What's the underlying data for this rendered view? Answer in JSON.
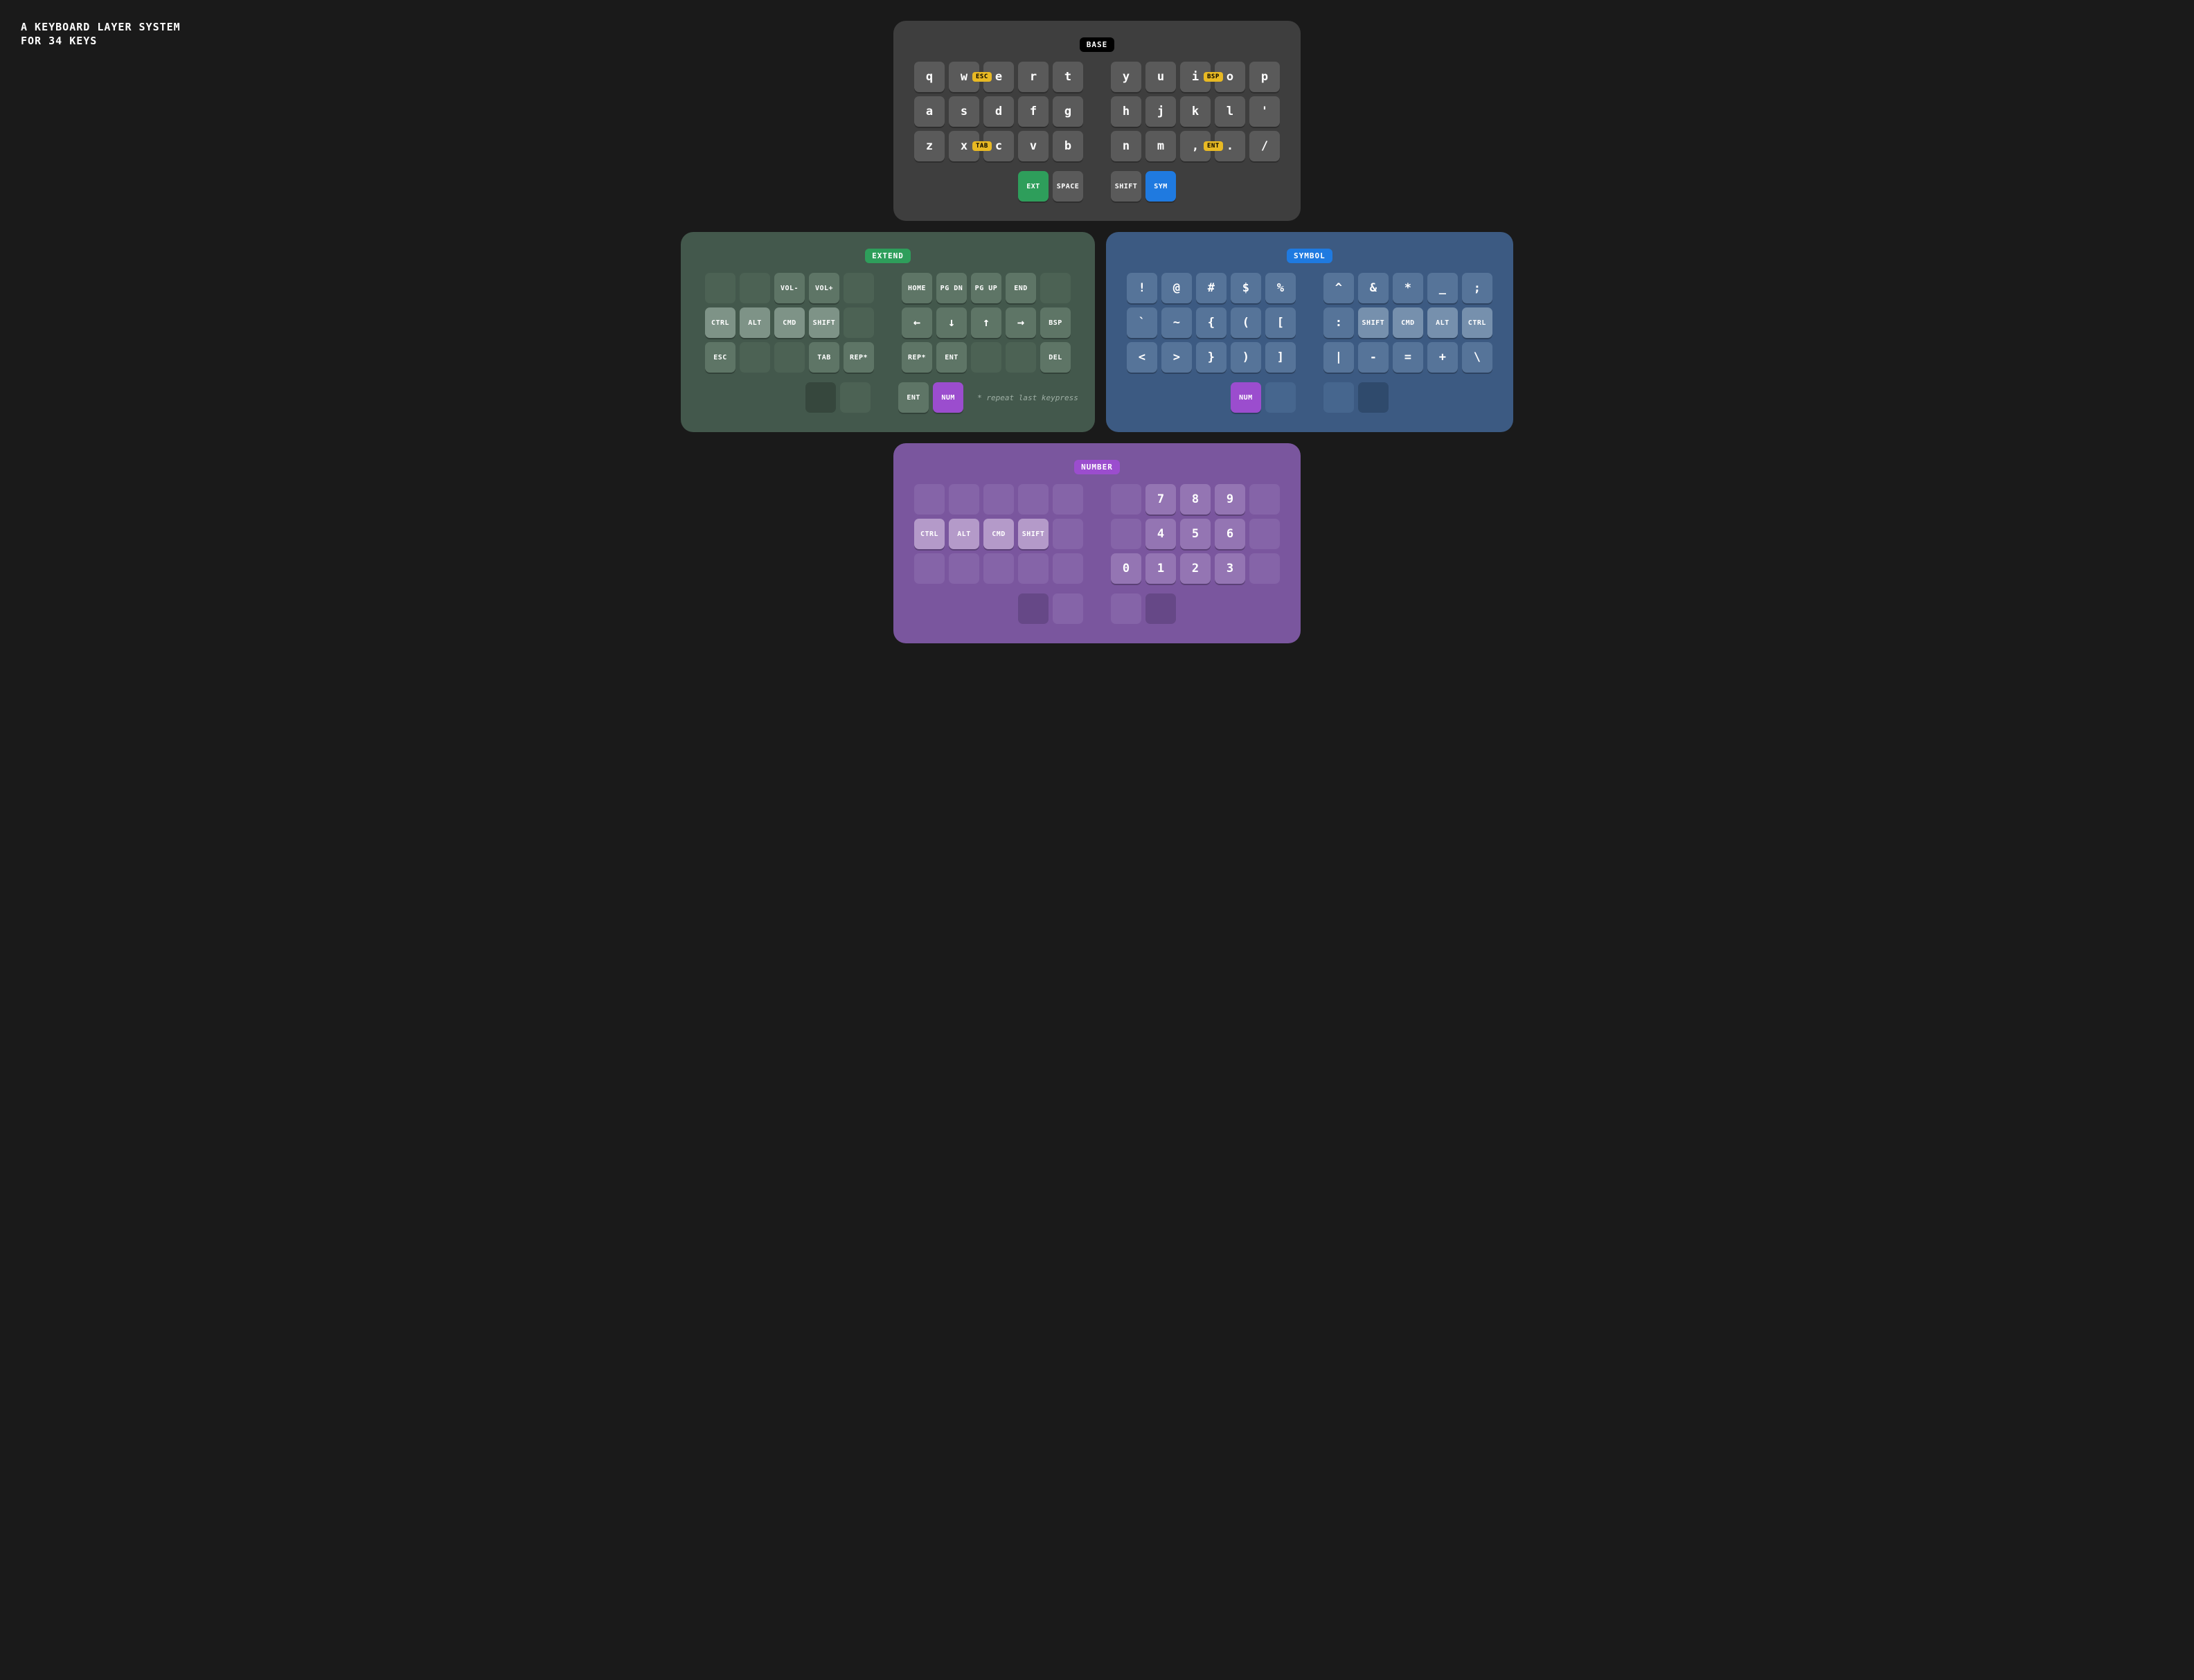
{
  "title_line1": "A KEYBOARD LAYER SYSTEM",
  "title_line2": "FOR 34 KEYS",
  "page_bg": "#1a1a1a",
  "layers": {
    "base": {
      "badge": "BASE",
      "badge_bg": "#000000",
      "badge_fg": "#ffffff",
      "board_bg": "#3e3e3e",
      "key_bg": "#5a5a5a",
      "key_fg": "#ffffff",
      "blank_bg": "#474747",
      "rows": [
        [
          {
            "l": "q"
          },
          {
            "l": "w",
            "combo": {
              "t": "ESC",
              "bg": "#e8b923",
              "fg": "#000"
            }
          },
          {
            "l": "e"
          },
          {
            "l": "r"
          },
          {
            "l": "t"
          },
          null,
          {
            "l": "y"
          },
          {
            "l": "u"
          },
          {
            "l": "i",
            "combo": {
              "t": "BSP",
              "bg": "#e8b923",
              "fg": "#000"
            }
          },
          {
            "l": "o"
          },
          {
            "l": "p"
          }
        ],
        [
          {
            "l": "a"
          },
          {
            "l": "s"
          },
          {
            "l": "d"
          },
          {
            "l": "f"
          },
          {
            "l": "g"
          },
          null,
          {
            "l": "h"
          },
          {
            "l": "j"
          },
          {
            "l": "k"
          },
          {
            "l": "l"
          },
          {
            "l": "'"
          }
        ],
        [
          {
            "l": "z"
          },
          {
            "l": "x",
            "combo": {
              "t": "TAB",
              "bg": "#e8b923",
              "fg": "#000"
            }
          },
          {
            "l": "c"
          },
          {
            "l": "v"
          },
          {
            "l": "b"
          },
          null,
          {
            "l": "n"
          },
          {
            "l": "m"
          },
          {
            "l": ",",
            "combo": {
              "t": "ENT",
              "bg": "#e8b923",
              "fg": "#000"
            }
          },
          {
            "l": "."
          },
          {
            "l": "/"
          }
        ]
      ],
      "thumbs": [
        {
          "l": "EXT",
          "sm": true,
          "bg": "#2e9e5b"
        },
        {
          "l": "SPACE",
          "sm": true
        },
        null,
        {
          "l": "SHIFT",
          "sm": true
        },
        {
          "l": "SYM",
          "sm": true,
          "bg": "#1f7ae0"
        }
      ]
    },
    "extend": {
      "badge": "EXTEND",
      "badge_bg": "#2e9e5b",
      "badge_fg": "#ffffff",
      "board_bg": "#43584c",
      "key_bg": "#5e7566",
      "key_fg": "#ffffff",
      "blank_bg": "#4c6254",
      "mod_bg": "#7e9387",
      "held_bg": "#36473d",
      "footnote": "* repeat last keypress",
      "footnote_color": "#c6d4cb",
      "rows": [
        [
          {
            "blank": true
          },
          {
            "blank": true
          },
          {
            "l": "VOL-",
            "sm": true
          },
          {
            "l": "VOL+",
            "sm": true
          },
          {
            "blank": true
          },
          null,
          {
            "l": "HOME",
            "sm": true
          },
          {
            "l": "PG DN",
            "sm": true
          },
          {
            "l": "PG UP",
            "sm": true
          },
          {
            "l": "END",
            "sm": true
          },
          {
            "blank": true
          }
        ],
        [
          {
            "l": "CTRL",
            "sm": true,
            "mod": true
          },
          {
            "l": "ALT",
            "sm": true,
            "mod": true
          },
          {
            "l": "CMD",
            "sm": true,
            "mod": true
          },
          {
            "l": "SHIFT",
            "sm": true,
            "mod": true
          },
          {
            "blank": true
          },
          null,
          {
            "l": "←"
          },
          {
            "l": "↓"
          },
          {
            "l": "↑"
          },
          {
            "l": "→"
          },
          {
            "l": "BSP",
            "sm": true
          }
        ],
        [
          {
            "l": "ESC",
            "sm": true
          },
          {
            "blank": true
          },
          {
            "blank": true
          },
          {
            "l": "TAB",
            "sm": true
          },
          {
            "l": "REP*",
            "sm": true
          },
          null,
          {
            "l": "REP*",
            "sm": true
          },
          {
            "l": "ENT",
            "sm": true
          },
          {
            "blank": true
          },
          {
            "blank": true
          },
          {
            "l": "DEL",
            "sm": true
          }
        ]
      ],
      "thumbs": [
        {
          "held": true
        },
        {
          "blank": true
        },
        null,
        {
          "l": "ENT",
          "sm": true
        },
        {
          "l": "NUM",
          "sm": true,
          "bg": "#9b4dce"
        }
      ]
    },
    "symbol": {
      "badge": "SYMBOL",
      "badge_bg": "#1f7ae0",
      "badge_fg": "#ffffff",
      "board_bg": "#3c5a82",
      "key_bg": "#567499",
      "key_fg": "#ffffff",
      "blank_bg": "#46668e",
      "mod_bg": "#7690ad",
      "held_bg": "#2f4a6c",
      "rows": [
        [
          {
            "l": "!"
          },
          {
            "l": "@"
          },
          {
            "l": "#"
          },
          {
            "l": "$"
          },
          {
            "l": "%"
          },
          null,
          {
            "l": "^"
          },
          {
            "l": "&"
          },
          {
            "l": "*"
          },
          {
            "l": "_"
          },
          {
            "l": ";"
          }
        ],
        [
          {
            "l": "`"
          },
          {
            "l": "~"
          },
          {
            "l": "{"
          },
          {
            "l": "("
          },
          {
            "l": "["
          },
          null,
          {
            "l": ":"
          },
          {
            "l": "SHIFT",
            "sm": true,
            "mod": true
          },
          {
            "l": "CMD",
            "sm": true,
            "mod": true
          },
          {
            "l": "ALT",
            "sm": true,
            "mod": true
          },
          {
            "l": "CTRL",
            "sm": true,
            "mod": true
          }
        ],
        [
          {
            "l": "<"
          },
          {
            "l": ">"
          },
          {
            "l": "}"
          },
          {
            "l": ")"
          },
          {
            "l": "]"
          },
          null,
          {
            "l": "|"
          },
          {
            "l": "-"
          },
          {
            "l": "="
          },
          {
            "l": "+"
          },
          {
            "l": "\\"
          }
        ]
      ],
      "thumbs": [
        {
          "l": "NUM",
          "sm": true,
          "bg": "#9b4dce"
        },
        {
          "blank": true
        },
        null,
        {
          "blank": true
        },
        {
          "held": true
        }
      ]
    },
    "number": {
      "badge": "NUMBER",
      "badge_bg": "#9b4dce",
      "badge_fg": "#ffffff",
      "board_bg": "#7a569e",
      "key_bg": "#9475b3",
      "key_fg": "#ffffff",
      "blank_bg": "#8564a8",
      "mod_bg": "#b49ac9",
      "held_bg": "#664887",
      "rows": [
        [
          {
            "blank": true
          },
          {
            "blank": true
          },
          {
            "blank": true
          },
          {
            "blank": true
          },
          {
            "blank": true
          },
          null,
          {
            "blank": true
          },
          {
            "l": "7"
          },
          {
            "l": "8"
          },
          {
            "l": "9"
          },
          {
            "blank": true
          }
        ],
        [
          {
            "l": "CTRL",
            "sm": true,
            "mod": true
          },
          {
            "l": "ALT",
            "sm": true,
            "mod": true
          },
          {
            "l": "CMD",
            "sm": true,
            "mod": true
          },
          {
            "l": "SHIFT",
            "sm": true,
            "mod": true
          },
          {
            "blank": true
          },
          null,
          {
            "blank": true
          },
          {
            "l": "4"
          },
          {
            "l": "5"
          },
          {
            "l": "6"
          },
          {
            "blank": true
          }
        ],
        [
          {
            "blank": true
          },
          {
            "blank": true
          },
          {
            "blank": true
          },
          {
            "blank": true
          },
          {
            "blank": true
          },
          null,
          {
            "l": "0"
          },
          {
            "l": "1"
          },
          {
            "l": "2"
          },
          {
            "l": "3"
          },
          {
            "blank": true
          }
        ]
      ],
      "thumbs": [
        {
          "held": true
        },
        {
          "blank": true
        },
        null,
        {
          "blank": true
        },
        {
          "held": true
        }
      ]
    }
  }
}
